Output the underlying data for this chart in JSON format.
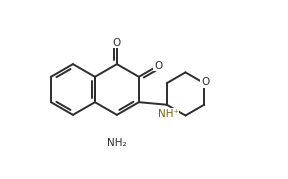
{
  "background_color": "#ffffff",
  "bond_color": "#2d2d2d",
  "bond_width": 1.4,
  "label_O1": "O",
  "label_O2": "O",
  "label_NH": "NH⁺",
  "label_NH2": "NH₂",
  "label_O_morph": "O",
  "font_size": 7.5,
  "figsize": [
    2.88,
    1.79
  ],
  "dpi": 100,
  "xlim": [
    0,
    10
  ],
  "ylim": [
    0,
    7
  ]
}
